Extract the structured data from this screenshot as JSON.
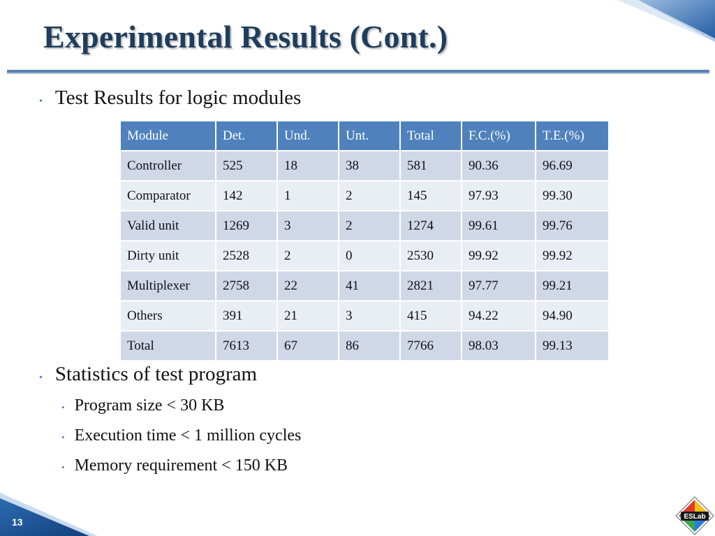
{
  "slide": {
    "title": "Experimental Results (Cont.)",
    "page_number": "13",
    "logo_text": "ESLab",
    "accent_color": "#4f81bd",
    "title_color": "#1f3d5c"
  },
  "bullets": {
    "b1": "Test Results for logic modules",
    "b2": "Statistics of test program",
    "b2_sub": [
      "Program size < 30 KB",
      "Execution time < 1 million cycles",
      "Memory requirement < 150 KB"
    ]
  },
  "table": {
    "headers": [
      "Module",
      "Det.",
      "Und.",
      "Unt.",
      "Total",
      "F.C.(%)",
      "T.E.(%)"
    ],
    "rows": [
      [
        "Controller",
        "525",
        "18",
        "38",
        "581",
        "90.36",
        "96.69"
      ],
      [
        "Comparator",
        "142",
        "1",
        "2",
        "145",
        "97.93",
        "99.30"
      ],
      [
        "Valid unit",
        "1269",
        "3",
        "2",
        "1274",
        "99.61",
        "99.76"
      ],
      [
        "Dirty unit",
        "2528",
        "2",
        "0",
        "2530",
        "99.92",
        "99.92"
      ],
      [
        "Multiplexer",
        "2758",
        "22",
        "41",
        "2821",
        "97.77",
        "99.21"
      ],
      [
        "Others",
        "391",
        "21",
        "3",
        "415",
        "94.22",
        "94.90"
      ],
      [
        "Total",
        "7613",
        "67",
        "86",
        "7766",
        "98.03",
        "99.13"
      ]
    ]
  }
}
